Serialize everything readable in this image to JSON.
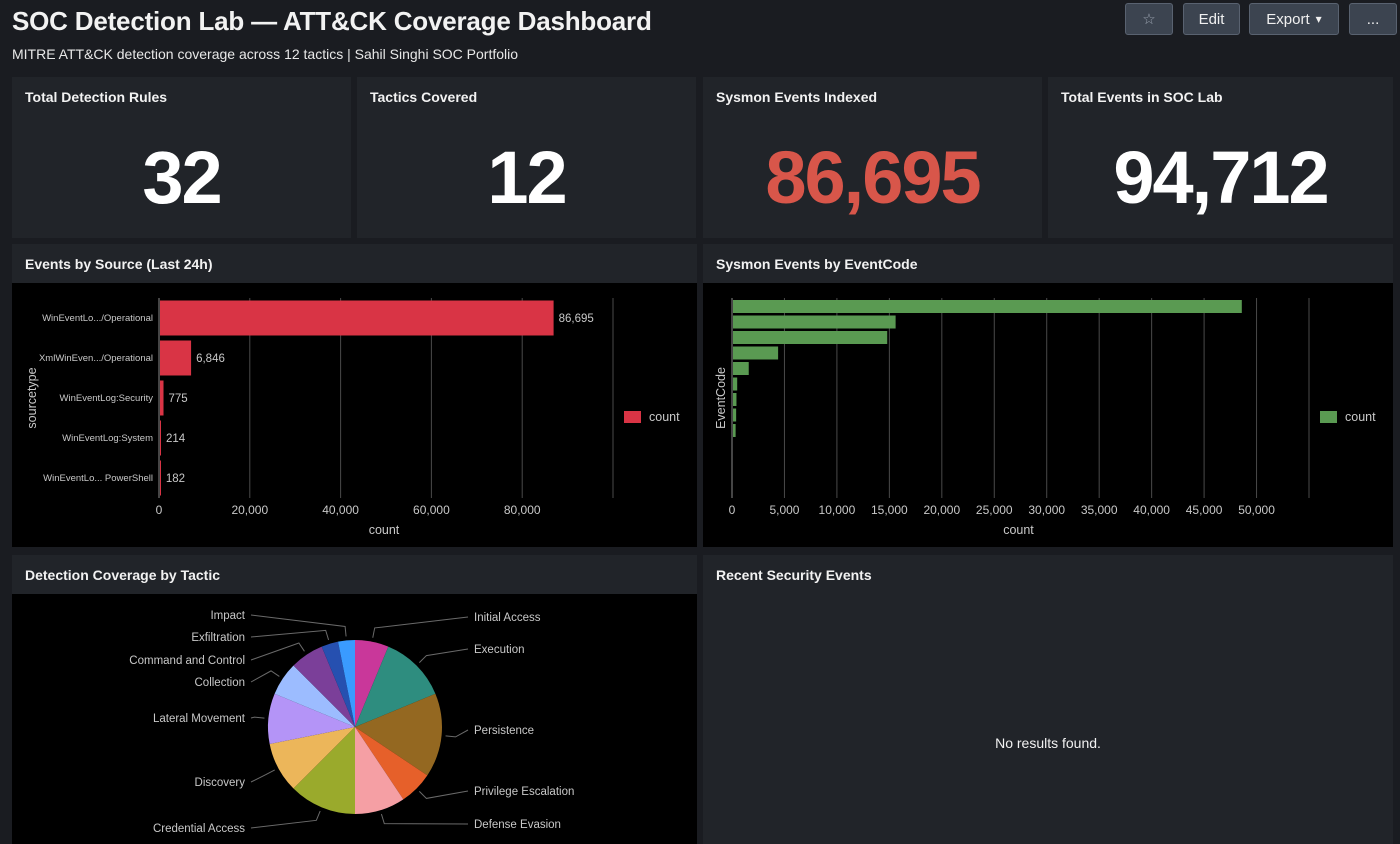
{
  "header": {
    "title": "SOC Detection Lab — ATT&CK Coverage Dashboard",
    "subtitle": "MITRE ATT&CK detection coverage across 12 tactics | Sahil Singhi SOC Portfolio",
    "buttons": {
      "star": "☆",
      "edit": "Edit",
      "export": "Export",
      "export_caret": "▾",
      "more": "..."
    }
  },
  "kpis": [
    {
      "title": "Total Detection Rules",
      "value": "32",
      "color": "#ffffff"
    },
    {
      "title": "Tactics Covered",
      "value": "12",
      "color": "#ffffff"
    },
    {
      "title": "Sysmon Events Indexed",
      "value": "86,695",
      "color": "#d8564a"
    },
    {
      "title": "Total Events in SOC Lab",
      "value": "94,712",
      "color": "#ffffff"
    }
  ],
  "panels": {
    "events_by_source": "Events by Source (Last 24h)",
    "sysmon_by_eventcode": "Sysmon Events by EventCode",
    "coverage_by_tactic": "Detection Coverage by Tactic",
    "recent_security_events": "Recent Security Events"
  },
  "recent_events": {
    "empty_message": "No results found."
  },
  "colors": {
    "red_bar": "#d93445",
    "green_bar": "#5a9a52",
    "axis_text": "#c8c8c8",
    "grid": "#4a4a4a"
  },
  "chart_data": [
    {
      "type": "bar",
      "orientation": "horizontal",
      "categories": [
        "WinEventLo.../Operational",
        "XmlWinEven.../Operational",
        "WinEventLog:Security",
        "WinEventLog:System",
        "WinEventLo... PowerShell"
      ],
      "series": [
        {
          "name": "count",
          "values": [
            86695,
            6846,
            775,
            214,
            182
          ],
          "color": "#d93445"
        }
      ],
      "data_labels": [
        "86,695",
        "6,846",
        "775",
        "214",
        "182"
      ],
      "xlabel": "count",
      "ylabel": "sourcetype",
      "xlim": [
        0,
        100000
      ],
      "xticks": [
        0,
        20000,
        40000,
        60000,
        80000
      ],
      "xtick_labels": [
        "0",
        "20,000",
        "40,000",
        "60,000",
        "80,000"
      ],
      "grid": true,
      "legend": "right"
    },
    {
      "type": "bar",
      "orientation": "horizontal",
      "categories": [
        "",
        "",
        "",
        "",
        "",
        "",
        "",
        "",
        ""
      ],
      "series": [
        {
          "name": "count",
          "values": [
            48500,
            15500,
            14700,
            4300,
            1500,
            400,
            330,
            300,
            250
          ],
          "color": "#5a9a52"
        }
      ],
      "xlabel": "count",
      "ylabel": "EventCode",
      "xlim": [
        0,
        55000
      ],
      "xticks": [
        0,
        5000,
        10000,
        15000,
        20000,
        25000,
        30000,
        35000,
        40000,
        45000,
        50000
      ],
      "xtick_labels": [
        "0",
        "5,000",
        "10,000",
        "15,000",
        "20,000",
        "25,000",
        "30,000",
        "35,000",
        "40,000",
        "45,000",
        "50,000"
      ],
      "grid": true,
      "legend": "right"
    },
    {
      "type": "pie",
      "slices": [
        {
          "label": "Initial Access",
          "value": 2,
          "color": "#c9379a"
        },
        {
          "label": "Execution",
          "value": 4,
          "color": "#2e8d7f"
        },
        {
          "label": "Persistence",
          "value": 5,
          "color": "#946821"
        },
        {
          "label": "Privilege Escalation",
          "value": 2,
          "color": "#e6602a"
        },
        {
          "label": "Defense Evasion",
          "value": 3,
          "color": "#f59fa4"
        },
        {
          "label": "Credential Access",
          "value": 4,
          "color": "#9aaa2c"
        },
        {
          "label": "Discovery",
          "value": 3,
          "color": "#ecb65a"
        },
        {
          "label": "Lateral Movement",
          "value": 3,
          "color": "#b494f7"
        },
        {
          "label": "Collection",
          "value": 2,
          "color": "#9cbcff"
        },
        {
          "label": "Command and Control",
          "value": 2,
          "color": "#7b3f99"
        },
        {
          "label": "Exfiltration",
          "value": 1,
          "color": "#2650b0"
        },
        {
          "label": "Impact",
          "value": 1,
          "color": "#3a9bff"
        }
      ]
    }
  ]
}
